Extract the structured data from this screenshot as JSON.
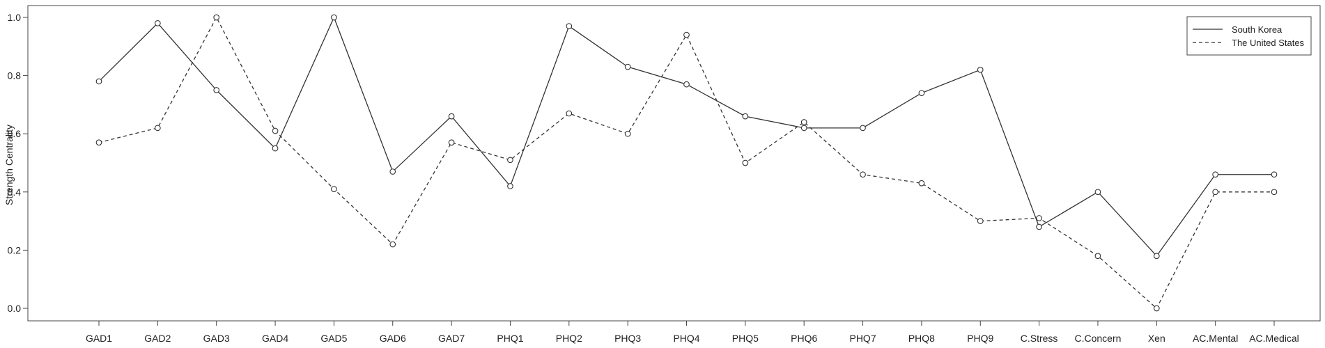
{
  "chart_data": {
    "type": "line",
    "title": "",
    "xlabel": "",
    "ylabel": "Strength Centrality",
    "ylim": [
      0,
      1
    ],
    "yticks": [
      "0.0",
      "0.2",
      "0.4",
      "0.6",
      "0.8",
      "1.0"
    ],
    "grid": false,
    "legend_position": "top-right",
    "categories": [
      "GAD1",
      "GAD2",
      "GAD3",
      "GAD4",
      "GAD5",
      "GAD6",
      "GAD7",
      "PHQ1",
      "PHQ2",
      "PHQ3",
      "PHQ4",
      "PHQ5",
      "PHQ6",
      "PHQ7",
      "PHQ8",
      "PHQ9",
      "C.Stress",
      "C.Concern",
      "Xen",
      "AC.Mental",
      "AC.Medical"
    ],
    "series": [
      {
        "name": "South Korea",
        "line_style": "solid",
        "color": "#333333",
        "values": [
          0.78,
          0.98,
          0.75,
          0.55,
          1.0,
          0.47,
          0.66,
          0.42,
          0.97,
          0.83,
          0.77,
          0.66,
          0.62,
          0.62,
          0.74,
          0.82,
          0.28,
          0.4,
          0.18,
          0.46,
          0.46
        ]
      },
      {
        "name": "The United States",
        "line_style": "dashed",
        "color": "#333333",
        "values": [
          0.57,
          0.62,
          1.0,
          0.61,
          0.41,
          0.22,
          0.57,
          0.51,
          0.67,
          0.6,
          0.94,
          0.5,
          0.64,
          0.46,
          0.43,
          0.3,
          0.31,
          0.18,
          0.0,
          0.4,
          0.4
        ]
      }
    ]
  }
}
